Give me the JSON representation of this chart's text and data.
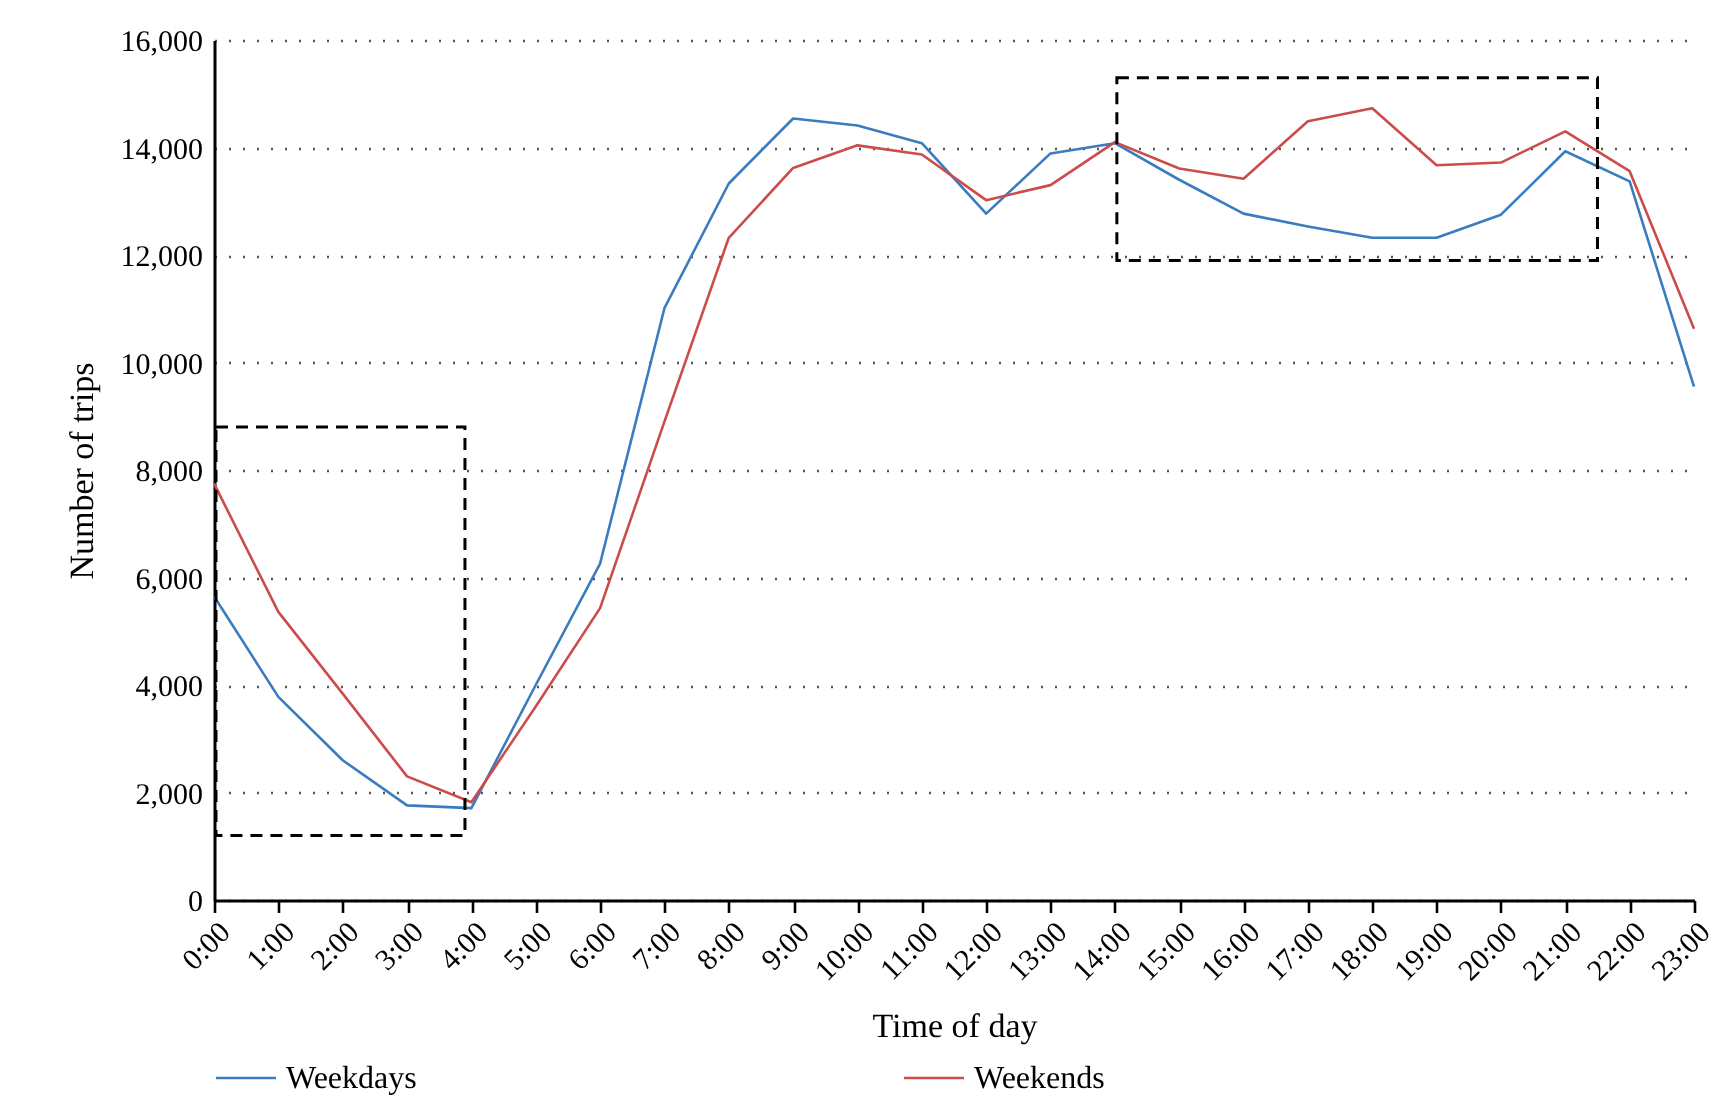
{
  "chart_data": {
    "type": "line",
    "xlabel": "Time of day",
    "ylabel": "Number of trips",
    "x": [
      0,
      1,
      2,
      3,
      4,
      5,
      6,
      7,
      8,
      9,
      10,
      11,
      12,
      13,
      14,
      15,
      16,
      17,
      18,
      19,
      20,
      21,
      22,
      23
    ],
    "xlim": [
      0,
      23
    ],
    "xticks": [
      {
        "value": 0,
        "label": "0:00"
      },
      {
        "value": 1,
        "label": "1:00"
      },
      {
        "value": 2,
        "label": "2:00"
      },
      {
        "value": 3,
        "label": "3:00"
      },
      {
        "value": 4,
        "label": "4:00"
      },
      {
        "value": 5,
        "label": "5:00"
      },
      {
        "value": 6,
        "label": "6:00"
      },
      {
        "value": 7,
        "label": "7:00"
      },
      {
        "value": 8,
        "label": "8:00"
      },
      {
        "value": 9,
        "label": "9:00"
      },
      {
        "value": 10,
        "label": "10:00"
      },
      {
        "value": 11,
        "label": "11:00"
      },
      {
        "value": 12,
        "label": "12:00"
      },
      {
        "value": 13,
        "label": "13:00"
      },
      {
        "value": 14,
        "label": "14:00"
      },
      {
        "value": 15,
        "label": "15:00"
      },
      {
        "value": 16,
        "label": "16:00"
      },
      {
        "value": 17,
        "label": "17:00"
      },
      {
        "value": 18,
        "label": "18:00"
      },
      {
        "value": 19,
        "label": "19:00"
      },
      {
        "value": 20,
        "label": "20:00"
      },
      {
        "value": 21,
        "label": "21:00"
      },
      {
        "value": 22,
        "label": "22:00"
      },
      {
        "value": 23,
        "label": "23:00"
      }
    ],
    "ylim": [
      0,
      16000
    ],
    "yticks": [
      {
        "value": 0,
        "label": "0"
      },
      {
        "value": 2000,
        "label": "2,000"
      },
      {
        "value": 4000,
        "label": "4,000"
      },
      {
        "value": 6000,
        "label": "6,000"
      },
      {
        "value": 8000,
        "label": "8,000"
      },
      {
        "value": 10000,
        "label": "10,000"
      },
      {
        "value": 12000,
        "label": "12,000"
      },
      {
        "value": 14000,
        "label": "14,000"
      },
      {
        "value": 16000,
        "label": "16,000"
      }
    ],
    "series": [
      {
        "name": "Weekdays",
        "color": "#3a7cc0",
        "values": [
          5650,
          3780,
          2600,
          1760,
          1710,
          4000,
          6260,
          11010,
          13330,
          14540,
          14410,
          14080,
          12770,
          13890,
          14080,
          13400,
          12770,
          12530,
          12320,
          12320,
          12750,
          13930,
          13370,
          9550
        ]
      },
      {
        "name": "Weekends",
        "color": "#cc4b4b",
        "values": [
          7750,
          5360,
          3840,
          2300,
          1820,
          3600,
          5430,
          8900,
          12320,
          13620,
          14040,
          13870,
          13020,
          13300,
          14100,
          13610,
          13420,
          14490,
          14730,
          13670,
          13720,
          14300,
          13560,
          10630
        ]
      }
    ],
    "grid": "y",
    "legend": "bottom",
    "line_style": "solid",
    "marker": "none"
  }
}
